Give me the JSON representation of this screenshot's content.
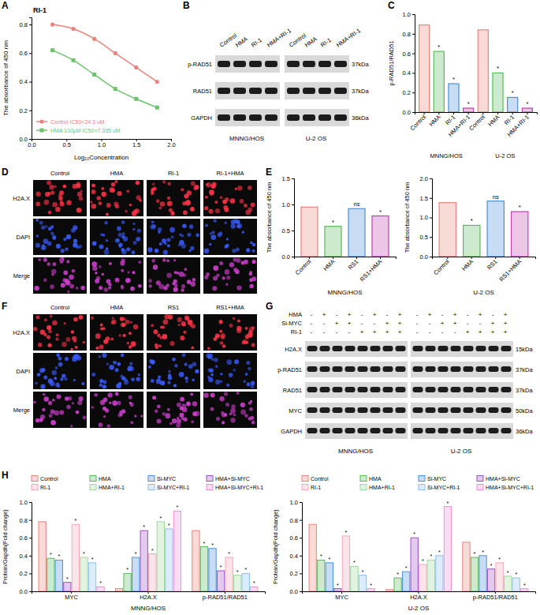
{
  "panel_labels": [
    "A",
    "B",
    "C",
    "D",
    "E",
    "F",
    "G",
    "H"
  ],
  "chart_data": [
    {
      "type": "line",
      "title": "RI-1",
      "x_label": "Log₁₀Concentration",
      "y_label": "The absorbance of 450 nm",
      "x": [
        0.3,
        0.6,
        0.9,
        1.2,
        1.5,
        1.8
      ],
      "series": [
        {
          "name": "Control IC50=24.3 uM",
          "color": "#e8847c",
          "marker": "circle",
          "values": [
            0.8,
            0.77,
            0.7,
            0.6,
            0.5,
            0.4
          ]
        },
        {
          "name": "HMA 100μM IC50=7.335 uM",
          "color": "#6cc46a",
          "marker": "square",
          "values": [
            0.62,
            0.55,
            0.45,
            0.35,
            0.28,
            0.22
          ]
        }
      ],
      "xlim": [
        0,
        2.0
      ],
      "xticks": [
        {
          "value": 0,
          "label": "0.0"
        },
        {
          "value": 0.5,
          "label": "0.5"
        },
        {
          "value": 1,
          "label": "1.0"
        },
        {
          "value": 1.5,
          "label": "1.5"
        },
        {
          "value": 2,
          "label": "2.0"
        }
      ],
      "ylim": [
        0,
        0.85
      ],
      "yticks": [
        {
          "value": 0,
          "label": "0.0"
        },
        {
          "value": 0.2,
          "label": "0.2"
        },
        {
          "value": 0.4,
          "label": "0.4"
        },
        {
          "value": 0.6,
          "label": "0.6"
        },
        {
          "value": 0.8,
          "label": "0.8"
        }
      ],
      "legend": "lower left"
    },
    {
      "type": "bar",
      "y_label": "p-RAD51/RAD51",
      "categories": [
        "Control",
        "HMA",
        "RI-1",
        "HMA+RI-1",
        "Control",
        "HMA",
        "RI-1",
        "HMA+RI-1"
      ],
      "group_labels": [
        "MNNG/HOS",
        "U-2 OS"
      ],
      "values": [
        0.89,
        0.62,
        0.29,
        0.04,
        0.84,
        0.4,
        0.15,
        0.04
      ],
      "annotations": [
        null,
        "*",
        "*",
        "*",
        null,
        "*",
        "*",
        "*"
      ],
      "colors": [
        "#e8847c",
        "#5cb85c",
        "#4a90d9",
        "#c03fb0",
        "#e8847c",
        "#5cb85c",
        "#4a90d9",
        "#c03fb0"
      ],
      "ylim": [
        0,
        1.0
      ],
      "yticks": [
        {
          "value": 0,
          "label": "0.0"
        },
        {
          "value": 0.2,
          "label": "0.2"
        },
        {
          "value": 0.4,
          "label": "0.4"
        },
        {
          "value": 0.6,
          "label": "0.6"
        },
        {
          "value": 0.8,
          "label": "0.8"
        },
        {
          "value": 1,
          "label": "1.0"
        }
      ]
    },
    {
      "type": "bar",
      "y_label": "The absorbance of 450 nm",
      "x_label": "MNNG/HOS",
      "categories": [
        "Control",
        "HMA",
        "RS1",
        "RS1+HMA"
      ],
      "values": [
        0.95,
        0.58,
        0.92,
        0.78
      ],
      "annotations": [
        null,
        "*",
        "ns",
        "*"
      ],
      "colors": [
        "#e8847c",
        "#5cb85c",
        "#4a90d9",
        "#c03fb0"
      ],
      "ylim": [
        0,
        1.5
      ],
      "yticks": [
        {
          "value": 0,
          "label": "0.0"
        },
        {
          "value": 0.5,
          "label": "0.5"
        },
        {
          "value": 1,
          "label": "1.0"
        },
        {
          "value": 1.5,
          "label": "1.5"
        }
      ]
    },
    {
      "type": "bar",
      "y_label": "The absorbance of 450 nm",
      "x_label": "U-2 OS",
      "categories": [
        "Control",
        "HMA",
        "RS1",
        "RS1+HMA"
      ],
      "values": [
        1.38,
        0.8,
        1.42,
        1.15
      ],
      "annotations": [
        null,
        "*",
        "ns",
        "*"
      ],
      "colors": [
        "#e8847c",
        "#5cb85c",
        "#4a90d9",
        "#c03fb0"
      ],
      "ylim": [
        0,
        2.0
      ],
      "yticks": [
        {
          "value": 0,
          "label": "0.0"
        },
        {
          "value": 0.5,
          "label": "0.5"
        },
        {
          "value": 1,
          "label": "1.0"
        },
        {
          "value": 1.5,
          "label": "1.5"
        },
        {
          "value": 2,
          "label": "2.0"
        }
      ]
    },
    {
      "type": "bar",
      "y_label": "Protein/Gapdh(Fold change)",
      "x_label": "MNNG/HOS",
      "legend": "top",
      "categories": [
        "MYC",
        "H2A.X",
        "p-RAD51/RAD51"
      ],
      "series": [
        {
          "name": "Control",
          "color": "#e8847c",
          "values": [
            0.78,
            0.03,
            0.68
          ],
          "annotations": [
            null,
            null,
            null
          ]
        },
        {
          "name": "HMA",
          "color": "#5cb85c",
          "values": [
            0.37,
            0.2,
            0.5
          ],
          "annotations": [
            "*",
            "*",
            "*"
          ]
        },
        {
          "name": "Si-MYC",
          "color": "#4a90d9",
          "values": [
            0.35,
            0.38,
            0.48
          ],
          "annotations": [
            "*",
            "*",
            "*"
          ]
        },
        {
          "name": "HMA+Si-MYC",
          "color": "#9b4fc0",
          "values": [
            0.1,
            0.68,
            0.23
          ],
          "annotations": [
            "*",
            "*",
            "*"
          ]
        },
        {
          "name": "RI-1",
          "color": "#f4a6b8",
          "values": [
            0.75,
            0.42,
            0.38
          ],
          "annotations": [
            "*",
            "*",
            "*"
          ]
        },
        {
          "name": "HMA+RI-1",
          "color": "#9ed89a",
          "values": [
            0.38,
            0.78,
            0.18
          ],
          "annotations": [
            "*",
            "*",
            "*"
          ]
        },
        {
          "name": "Si-MYC+RI-1",
          "color": "#8fc0ee",
          "values": [
            0.32,
            0.7,
            0.2
          ],
          "annotations": [
            "*",
            "*",
            "*"
          ]
        },
        {
          "name": "HMA+Si-MYC+RI-1",
          "color": "#ee8fd8",
          "values": [
            0.05,
            0.9,
            0.05
          ],
          "annotations": [
            "*",
            "*",
            "*"
          ]
        }
      ],
      "ylim": [
        0,
        1.0
      ],
      "yticks": [
        {
          "value": 0,
          "label": "0.0"
        },
        {
          "value": 0.2,
          "label": "0.2"
        },
        {
          "value": 0.4,
          "label": "0.4"
        },
        {
          "value": 0.6,
          "label": "0.6"
        },
        {
          "value": 0.8,
          "label": "0.8"
        },
        {
          "value": 1,
          "label": "1.0"
        }
      ]
    },
    {
      "type": "bar",
      "y_label": "Protein/Gapdh(Fold change)",
      "x_label": "U-2 OS",
      "legend": "top",
      "categories": [
        "MYC",
        "H2A.X",
        "p-RAD51/RAD51"
      ],
      "series": [
        {
          "name": "Control",
          "color": "#e8847c",
          "values": [
            0.75,
            0.02,
            0.55
          ],
          "annotations": [
            null,
            null,
            null
          ]
        },
        {
          "name": "HMA",
          "color": "#5cb85c",
          "values": [
            0.35,
            0.15,
            0.38
          ],
          "annotations": [
            "*",
            "*",
            "*"
          ]
        },
        {
          "name": "Si-MYC",
          "color": "#4a90d9",
          "values": [
            0.32,
            0.22,
            0.4
          ],
          "annotations": [
            "*",
            "*",
            "*"
          ]
        },
        {
          "name": "HMA+Si-MYC",
          "color": "#9b4fc0",
          "values": [
            0.03,
            0.6,
            0.25
          ],
          "annotations": [
            "*",
            "*",
            "*"
          ]
        },
        {
          "name": "RI-1",
          "color": "#f4a6b8",
          "values": [
            0.62,
            0.3,
            0.32
          ],
          "annotations": [
            "*",
            "*",
            "*"
          ]
        },
        {
          "name": "HMA+RI-1",
          "color": "#9ed89a",
          "values": [
            0.28,
            0.35,
            0.17
          ],
          "annotations": [
            "*",
            "*",
            "*"
          ]
        },
        {
          "name": "Si-MYC+RI-1",
          "color": "#8fc0ee",
          "values": [
            0.18,
            0.4,
            0.15
          ],
          "annotations": [
            "*",
            "*",
            "*"
          ]
        },
        {
          "name": "HMA+Si-MYC+RI-1",
          "color": "#ee8fd8",
          "values": [
            0.03,
            0.95,
            0.03
          ],
          "annotations": [
            "*",
            "*",
            "*"
          ]
        }
      ],
      "ylim": [
        0,
        1.0
      ],
      "yticks": [
        {
          "value": 0,
          "label": "0.0"
        },
        {
          "value": 0.2,
          "label": "0.2"
        },
        {
          "value": 0.4,
          "label": "0.4"
        },
        {
          "value": 0.6,
          "label": "0.6"
        },
        {
          "value": 0.8,
          "label": "0.8"
        },
        {
          "value": 1,
          "label": "1.0"
        }
      ]
    }
  ],
  "blot_b": {
    "lanes": [
      "Control",
      "HMA",
      "RI-1",
      "HMA+RI-1"
    ],
    "cell_lines": [
      "MNNG/HOS",
      "U-2 OS"
    ],
    "rows": [
      {
        "label": "p-RAD51",
        "size": "37kDa"
      },
      {
        "label": "RAD51",
        "size": "37kDa"
      },
      {
        "label": "GAPDH",
        "size": "36kDa"
      }
    ]
  },
  "images_d": {
    "columns": [
      "Control",
      "HMA",
      "RI-1",
      "RI-1+HMA"
    ],
    "rows": [
      "H2A.X",
      "DAPI",
      "Merge"
    ]
  },
  "images_f": {
    "columns": [
      "Control",
      "HMA",
      "RS1",
      "RS1+HMA"
    ],
    "rows": [
      "H2A.X",
      "DAPI",
      "Merge"
    ]
  },
  "blot_g": {
    "cell_lines": [
      "MNNG/HOS",
      "U-2 OS"
    ],
    "conditions": [
      {
        "label": "HMA",
        "signs": [
          "-",
          "+",
          "-",
          "+",
          "-",
          "+",
          "-",
          "+"
        ]
      },
      {
        "label": "Si-MYC",
        "signs": [
          "-",
          "-",
          "+",
          "+",
          "-",
          "-",
          "+",
          "+"
        ]
      },
      {
        "label": "RI-1",
        "signs": [
          "-",
          "-",
          "-",
          "-",
          "+",
          "+",
          "+",
          "+"
        ]
      }
    ],
    "rows": [
      {
        "label": "H2A.X",
        "size": "15kDa"
      },
      {
        "label": "p-RAD51",
        "size": "37kDa"
      },
      {
        "label": "RAD51",
        "size": "37kDa"
      },
      {
        "label": "MYC",
        "size": "50kDa"
      },
      {
        "label": "GAPDH",
        "size": "36kDa"
      }
    ]
  }
}
